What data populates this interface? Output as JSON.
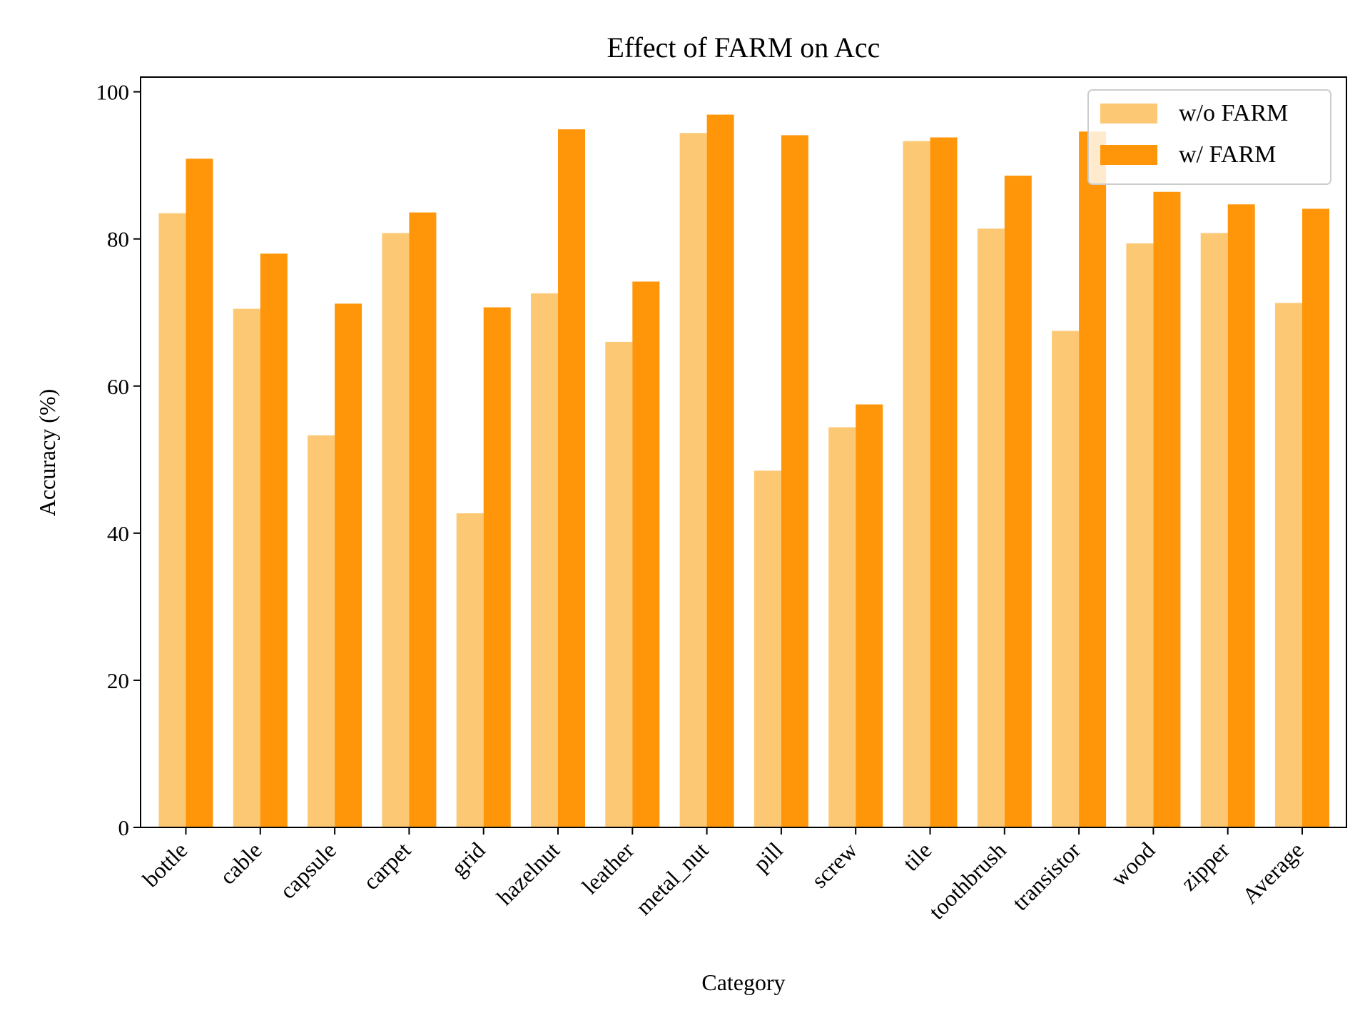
{
  "chart_data": {
    "type": "bar",
    "title": "Effect of FARM on Acc",
    "xlabel": "Category",
    "ylabel": "Accuracy (%)",
    "ylim": [
      0,
      102
    ],
    "yticks": [
      0,
      20,
      40,
      60,
      80,
      100
    ],
    "grid": false,
    "legend_position": "top-right",
    "categories": [
      "bottle",
      "cable",
      "capsule",
      "carpet",
      "grid",
      "hazelnut",
      "leather",
      "metal_nut",
      "pill",
      "screw",
      "tile",
      "toothbrush",
      "transistor",
      "wood",
      "zipper",
      "Average"
    ],
    "series": [
      {
        "name": "w/o FARM",
        "color": "#FDC874",
        "values": [
          83.5,
          70.5,
          53.3,
          80.8,
          42.7,
          72.6,
          66.0,
          94.4,
          48.5,
          54.4,
          93.3,
          81.4,
          67.5,
          79.4,
          80.8,
          71.3
        ]
      },
      {
        "name": "w/ FARM",
        "color": "#FF960A",
        "values": [
          90.9,
          78.0,
          71.2,
          83.6,
          70.7,
          94.9,
          74.2,
          96.9,
          94.1,
          57.5,
          93.8,
          88.6,
          94.6,
          86.4,
          84.7,
          84.1
        ]
      }
    ]
  }
}
